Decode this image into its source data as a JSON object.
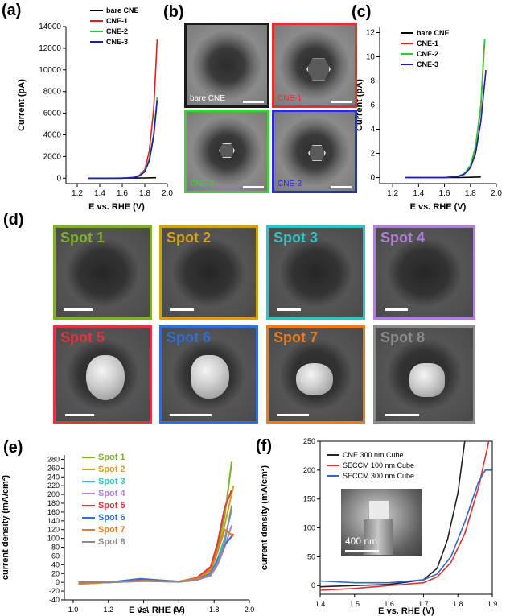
{
  "panel_labels": {
    "a": "(a)",
    "b": "(b)",
    "c": "(c)",
    "d": "(d)",
    "e": "(e)",
    "f": "(f)"
  },
  "panel_b": {
    "tiles": [
      {
        "tag": "bare CNE",
        "border": "#1a1a1a",
        "tag_color": "#ffffff"
      },
      {
        "tag": "CNE-1",
        "border": "#e03030",
        "tag_color": "#e03030"
      },
      {
        "tag": "CNE-2",
        "border": "#3bd13b",
        "tag_color": "#3bd13b"
      },
      {
        "tag": "CNE-3",
        "border": "#2a2ad0",
        "tag_color": "#2a2ad0"
      }
    ]
  },
  "panel_d": {
    "spots": [
      {
        "label": "Spot 1",
        "color": "#7bb02a"
      },
      {
        "label": "Spot 2",
        "color": "#d4a017"
      },
      {
        "label": "Spot 3",
        "color": "#2ec4c4"
      },
      {
        "label": "Spot 4",
        "color": "#b07fd8"
      },
      {
        "label": "Spot 5",
        "color": "#e0343f"
      },
      {
        "label": "Spot 6",
        "color": "#2f6fd6"
      },
      {
        "label": "Spot 7",
        "color": "#f07a1a"
      },
      {
        "label": "Spot 8",
        "color": "#8c8c8c"
      }
    ]
  },
  "inset_f": {
    "scale_label": "400 nm"
  },
  "chart_data": [
    {
      "id": "a",
      "type": "line",
      "xlabel": "E vs. RHE (V)",
      "ylabel": "Current (pA)",
      "xlim": [
        1.1,
        2.0
      ],
      "ylim": [
        -500,
        14000
      ],
      "xticks": [
        "1.2",
        "1.4",
        "1.6",
        "1.8",
        "2.0"
      ],
      "yticks": [
        "0",
        "2000",
        "4000",
        "6000",
        "8000",
        "10000",
        "12000",
        "14000"
      ],
      "legend_position": "top-right",
      "series": [
        {
          "name": "bare CNE",
          "color": "#000000",
          "x": [
            1.3,
            1.5,
            1.7,
            1.8,
            1.9
          ],
          "y": [
            0,
            0,
            10,
            20,
            40
          ]
        },
        {
          "name": "CNE-1",
          "color": "#e02020",
          "x": [
            1.3,
            1.6,
            1.7,
            1.75,
            1.8,
            1.84,
            1.88,
            1.91
          ],
          "y": [
            0,
            0,
            80,
            250,
            800,
            2500,
            6500,
            12800
          ]
        },
        {
          "name": "CNE-2",
          "color": "#2ecc2e",
          "x": [
            1.3,
            1.6,
            1.7,
            1.75,
            1.8,
            1.84,
            1.88,
            1.91
          ],
          "y": [
            0,
            0,
            70,
            220,
            650,
            1800,
            4200,
            7500
          ]
        },
        {
          "name": "CNE-3",
          "color": "#1a1ac0",
          "x": [
            1.3,
            1.6,
            1.7,
            1.75,
            1.8,
            1.84,
            1.88,
            1.91
          ],
          "y": [
            0,
            0,
            60,
            200,
            600,
            1600,
            3900,
            7200
          ]
        }
      ]
    },
    {
      "id": "c",
      "type": "line",
      "xlabel": "E vs. RHE (V)",
      "ylabel": "Current (pA)",
      "xlim": [
        1.1,
        2.0
      ],
      "ylim": [
        -0.5,
        12.5
      ],
      "xticks": [
        "1.2",
        "1.4",
        "1.6",
        "1.8",
        "2.0"
      ],
      "yticks": [
        "0",
        "2",
        "4",
        "6",
        "8",
        "10",
        "12"
      ],
      "legend_position": "top-left",
      "series": [
        {
          "name": "bare CNE",
          "color": "#000000",
          "x": [
            1.3,
            1.5,
            1.7,
            1.8,
            1.88
          ],
          "y": [
            0,
            0,
            0,
            0.02,
            0.05
          ]
        },
        {
          "name": "CNE-1",
          "color": "#e02020",
          "x": [
            1.3,
            1.6,
            1.7,
            1.75,
            1.8,
            1.84,
            1.88,
            1.91
          ],
          "y": [
            0,
            0,
            0.1,
            0.3,
            0.9,
            2.5,
            5.8,
            11.3
          ]
        },
        {
          "name": "CNE-2",
          "color": "#2ecc2e",
          "x": [
            1.3,
            1.6,
            1.7,
            1.75,
            1.8,
            1.84,
            1.88,
            1.91
          ],
          "y": [
            0,
            0,
            0.1,
            0.3,
            1.0,
            2.6,
            6.0,
            11.5
          ]
        },
        {
          "name": "CNE-3",
          "color": "#1a1ac0",
          "x": [
            1.3,
            1.6,
            1.7,
            1.75,
            1.8,
            1.84,
            1.88,
            1.92
          ],
          "y": [
            0,
            0,
            0.08,
            0.25,
            0.8,
            2.0,
            4.6,
            8.9
          ]
        }
      ]
    },
    {
      "id": "e",
      "type": "line",
      "xlabel": "E vs. RHE (V)",
      "ylabel": "current density (mA/cm²)",
      "xlim": [
        0.95,
        2.0
      ],
      "ylim": [
        -40,
        290
      ],
      "xticks": [
        "1.0",
        "1.2",
        "1.4",
        "1.6",
        "1.8",
        "2.0"
      ],
      "yticks": [
        "-40",
        "-20",
        "0",
        "20",
        "40",
        "60",
        "80",
        "100",
        "120",
        "140",
        "160",
        "180",
        "200",
        "220",
        "240",
        "260",
        "280"
      ],
      "legend_position": "top-left",
      "series": [
        {
          "name": "Spot 1",
          "color": "#7bb02a",
          "x": [
            1.03,
            1.2,
            1.4,
            1.6,
            1.7,
            1.78,
            1.82,
            1.86,
            1.9
          ],
          "y": [
            -2,
            0,
            5,
            2,
            8,
            30,
            80,
            150,
            275
          ]
        },
        {
          "name": "Spot 2",
          "color": "#d4a017",
          "x": [
            1.03,
            1.2,
            1.4,
            1.6,
            1.7,
            1.78,
            1.82,
            1.86,
            1.91
          ],
          "y": [
            0,
            0,
            3,
            2,
            8,
            25,
            70,
            130,
            220
          ]
        },
        {
          "name": "Spot 3",
          "color": "#2ec4c4",
          "x": [
            1.03,
            1.2,
            1.4,
            1.6,
            1.7,
            1.78,
            1.82,
            1.86,
            1.9
          ],
          "y": [
            0,
            0,
            4,
            2,
            6,
            20,
            55,
            100,
            165
          ]
        },
        {
          "name": "Spot 4",
          "color": "#b07fd8",
          "x": [
            1.03,
            1.2,
            1.4,
            1.6,
            1.7,
            1.78,
            1.82,
            1.86,
            1.9
          ],
          "y": [
            0,
            0,
            3,
            1,
            5,
            15,
            40,
            80,
            130
          ]
        },
        {
          "name": "Spot 5",
          "color": "#e0343f",
          "x": [
            1.03,
            1.2,
            1.4,
            1.6,
            1.7,
            1.78,
            1.82,
            1.86,
            1.9
          ],
          "y": [
            0,
            0,
            6,
            2,
            10,
            35,
            90,
            170,
            210
          ]
        },
        {
          "name": "Spot 6",
          "color": "#2f6fd6",
          "x": [
            1.03,
            1.2,
            1.38,
            1.6,
            1.7,
            1.78,
            1.82,
            1.86,
            1.91
          ],
          "y": [
            0,
            0,
            8,
            2,
            6,
            20,
            50,
            85,
            110
          ]
        },
        {
          "name": "Spot 7",
          "color": "#f07a1a",
          "x": [
            1.03,
            1.2,
            1.4,
            1.6,
            1.7,
            1.78,
            1.82,
            1.86,
            1.91
          ],
          "y": [
            -4,
            0,
            4,
            2,
            8,
            28,
            70,
            120,
            105
          ]
        },
        {
          "name": "Spot 8",
          "color": "#8c8c8c",
          "x": [
            1.03,
            1.2,
            1.4,
            1.6,
            1.7,
            1.78,
            1.82,
            1.86,
            1.9
          ],
          "y": [
            0,
            0,
            3,
            1,
            5,
            18,
            45,
            90,
            175
          ]
        }
      ]
    },
    {
      "id": "f",
      "type": "line",
      "xlabel": "E vs. RHE (V)",
      "ylabel": "current density (mA/cm²)",
      "xlim": [
        1.4,
        1.9
      ],
      "ylim": [
        -15,
        250
      ],
      "xticks": [
        "1.4",
        "1.5",
        "1.6",
        "1.7",
        "1.8",
        "1.9"
      ],
      "yticks": [
        "0",
        "50",
        "100",
        "150",
        "200",
        "250"
      ],
      "legend_position": "top-left",
      "series": [
        {
          "name": "CNE 300 nm Cube",
          "color": "#222222",
          "x": [
            1.4,
            1.5,
            1.6,
            1.7,
            1.74,
            1.77,
            1.8,
            1.82
          ],
          "y": [
            -2,
            0,
            2,
            10,
            30,
            80,
            160,
            250
          ]
        },
        {
          "name": "SECCM 100 nm Cube",
          "color": "#e03030",
          "x": [
            1.4,
            1.5,
            1.6,
            1.7,
            1.74,
            1.78,
            1.82,
            1.86,
            1.89
          ],
          "y": [
            -8,
            -5,
            0,
            5,
            15,
            40,
            90,
            170,
            250
          ]
        },
        {
          "name": "SECCM 300 nm Cube",
          "color": "#2a6ad0",
          "x": [
            1.4,
            1.5,
            1.6,
            1.7,
            1.74,
            1.78,
            1.82,
            1.86,
            1.88,
            1.9
          ],
          "y": [
            8,
            5,
            5,
            10,
            20,
            50,
            110,
            180,
            200,
            200
          ]
        }
      ]
    }
  ]
}
